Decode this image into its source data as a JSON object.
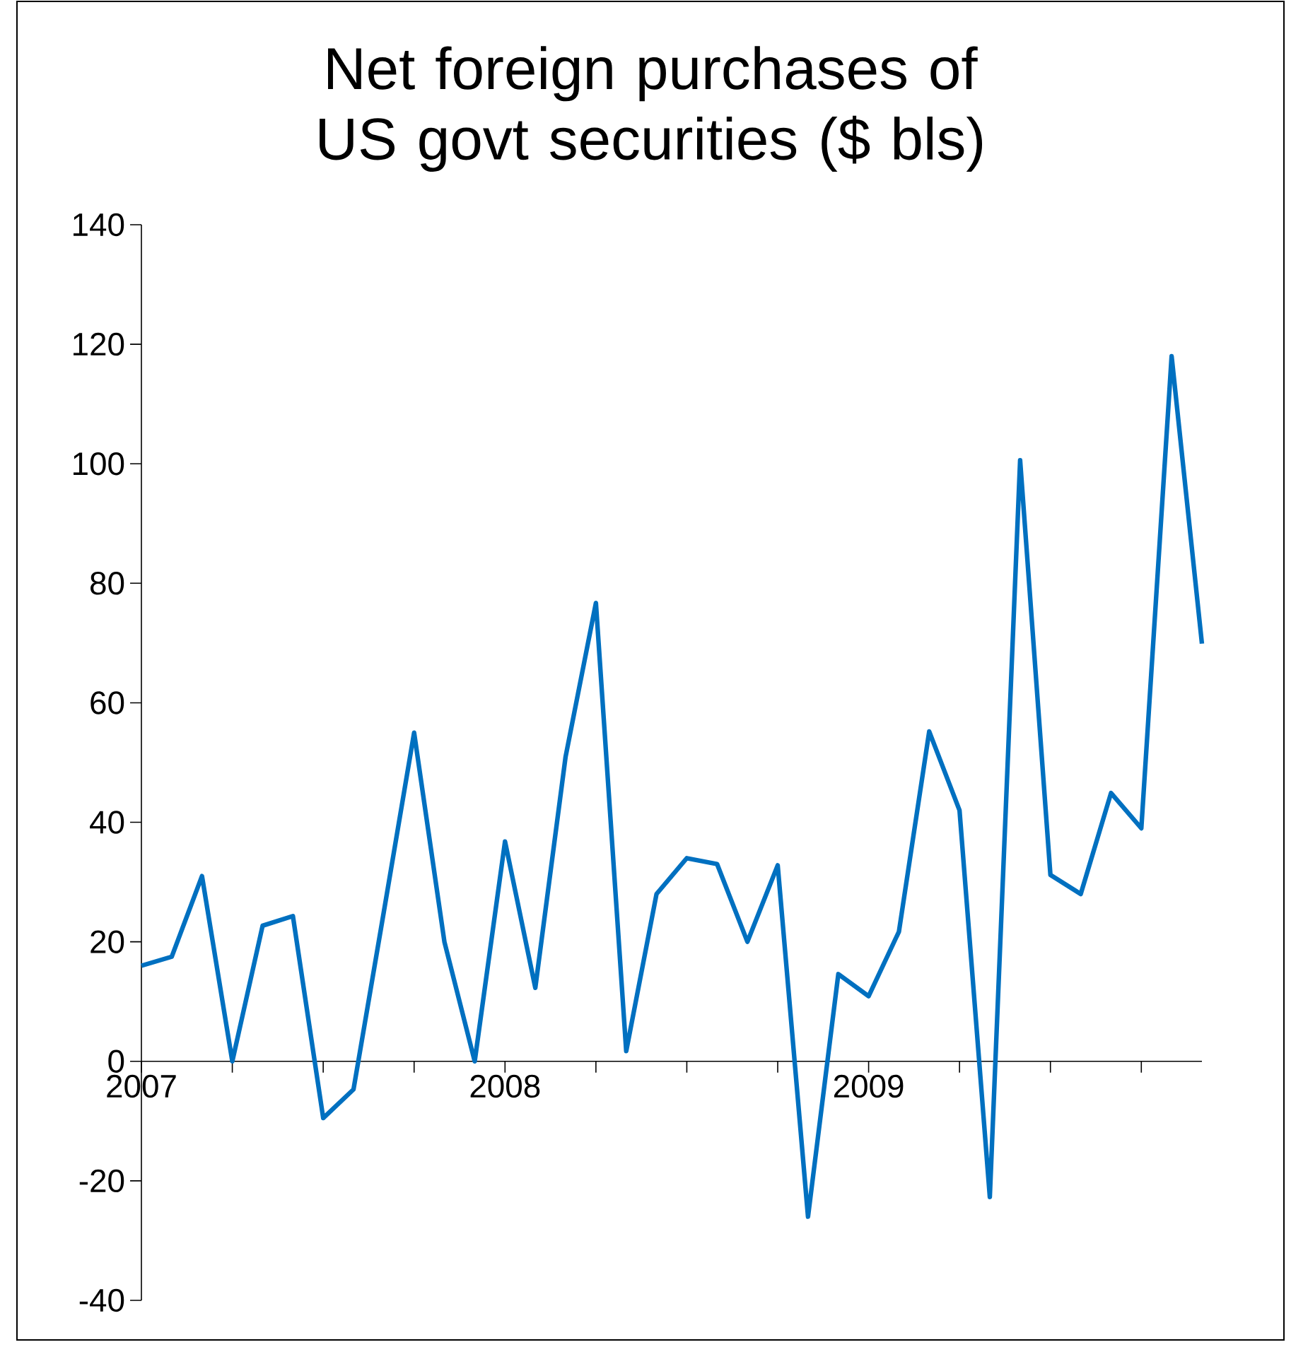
{
  "chart_data": {
    "type": "line",
    "title": "Net foreign purchases of US govt securities ($ bls)",
    "x": [
      "2007-01",
      "2007-02",
      "2007-03",
      "2007-04",
      "2007-05",
      "2007-06",
      "2007-07",
      "2007-08",
      "2007-09",
      "2007-10",
      "2007-11",
      "2007-12",
      "2008-01",
      "2008-02",
      "2008-03",
      "2008-04",
      "2008-05",
      "2008-06",
      "2008-07",
      "2008-08",
      "2008-09",
      "2008-10",
      "2008-11",
      "2008-12",
      "2009-01",
      "2009-02",
      "2009-03",
      "2009-04",
      "2009-05",
      "2009-06",
      "2009-07",
      "2009-08",
      "2009-09",
      "2009-10",
      "2009-11",
      "2009-12"
    ],
    "values": [
      16,
      17.5,
      31,
      0,
      22.7,
      24.3,
      -9.5,
      -4.7,
      25,
      55,
      20,
      0,
      36.8,
      12.3,
      51,
      76.7,
      1.7,
      28,
      34,
      33,
      20,
      32.8,
      -26,
      14.6,
      10.9,
      21.7,
      55.2,
      42,
      -22.7,
      100.6,
      31.2,
      28,
      44.9,
      39,
      118,
      69.9
    ],
    "color": "#0070c0",
    "xlim": [
      "2007-01",
      "2009-12"
    ],
    "ylim": [
      -40,
      140
    ],
    "xticks": [
      {
        "value": "2007-01",
        "label": "2007"
      },
      {
        "value": "2007-04",
        "label": null
      },
      {
        "value": "2007-07",
        "label": null
      },
      {
        "value": "2007-10",
        "label": null
      },
      {
        "value": "2008-01",
        "label": "2008"
      },
      {
        "value": "2008-04",
        "label": null
      },
      {
        "value": "2008-07",
        "label": null
      },
      {
        "value": "2008-10",
        "label": null
      },
      {
        "value": "2009-01",
        "label": "2009"
      },
      {
        "value": "2009-04",
        "label": null
      },
      {
        "value": "2009-07",
        "label": null
      },
      {
        "value": "2009-10",
        "label": null
      }
    ],
    "yticks": [
      -40,
      -20,
      0,
      20,
      40,
      60,
      80,
      100,
      120,
      140
    ]
  }
}
